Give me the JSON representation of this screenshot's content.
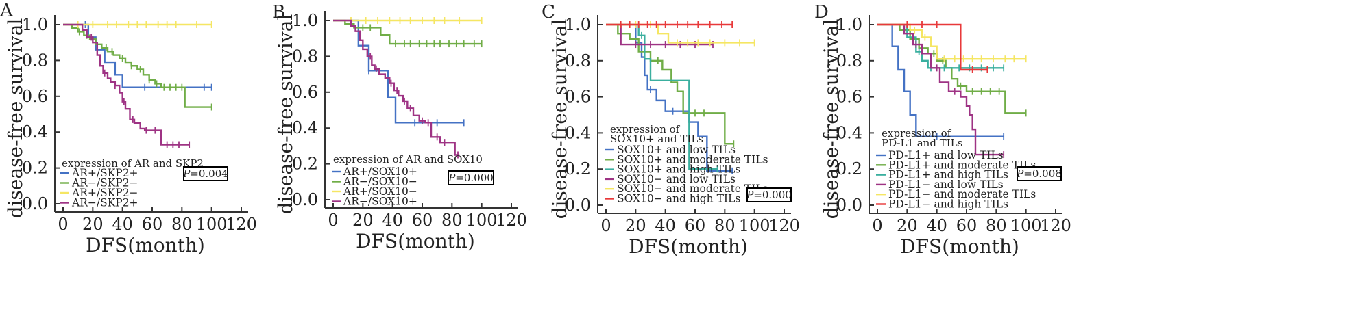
{
  "chart_data": [
    {
      "type": "line",
      "panel": "A",
      "xlabel": "DFS(month)",
      "ylabel": "disease-free survival",
      "xlim": [
        0,
        120
      ],
      "ylim": [
        0,
        1.0
      ],
      "xticks": [
        0,
        20,
        40,
        60,
        80,
        100,
        120
      ],
      "yticks": [
        0.0,
        0.2,
        0.4,
        0.6,
        0.8,
        1.0
      ],
      "legend_title": "expression of AR and SKP2",
      "legend_placement": "bottom-left",
      "p_value": "0.004",
      "series": [
        {
          "name": "AR+/SKP2+",
          "color": "#4472c4",
          "steps": [
            [
              0,
              1.0
            ],
            [
              17,
              0.93
            ],
            [
              22,
              0.86
            ],
            [
              28,
              0.79
            ],
            [
              35,
              0.72
            ],
            [
              40,
              0.65
            ],
            [
              100,
              0.65
            ]
          ],
          "censored": [
            15,
            55,
            95,
            100
          ]
        },
        {
          "name": "AR−/SKP2−",
          "color": "#70ad47",
          "steps": [
            [
              0,
              1.0
            ],
            [
              6,
              0.98
            ],
            [
              10,
              0.96
            ],
            [
              14,
              0.94
            ],
            [
              18,
              0.92
            ],
            [
              22,
              0.89
            ],
            [
              26,
              0.87
            ],
            [
              30,
              0.85
            ],
            [
              34,
              0.83
            ],
            [
              38,
              0.81
            ],
            [
              42,
              0.79
            ],
            [
              46,
              0.77
            ],
            [
              50,
              0.75
            ],
            [
              54,
              0.72
            ],
            [
              58,
              0.69
            ],
            [
              62,
              0.67
            ],
            [
              66,
              0.65
            ],
            [
              82,
              0.54
            ],
            [
              100,
              0.54
            ]
          ],
          "censored": [
            11,
            16,
            29,
            33,
            40,
            46,
            52,
            58,
            63,
            68,
            72,
            76,
            80,
            100
          ]
        },
        {
          "name": "AR+/SKP2−",
          "color": "#f5e663",
          "steps": [
            [
              0,
              1.0
            ],
            [
              100,
              1.0
            ]
          ],
          "censored": [
            10,
            20,
            30,
            36,
            44,
            50,
            56,
            64,
            70,
            76,
            90,
            100
          ]
        },
        {
          "name": "AR−/SKP2+",
          "color": "#9e3384",
          "steps": [
            [
              0,
              1.0
            ],
            [
              13,
              0.97
            ],
            [
              16,
              0.93
            ],
            [
              20,
              0.9
            ],
            [
              23,
              0.83
            ],
            [
              25,
              0.77
            ],
            [
              27,
              0.73
            ],
            [
              30,
              0.7
            ],
            [
              32,
              0.68
            ],
            [
              35,
              0.66
            ],
            [
              38,
              0.62
            ],
            [
              40,
              0.57
            ],
            [
              42,
              0.53
            ],
            [
              45,
              0.47
            ],
            [
              48,
              0.45
            ],
            [
              52,
              0.42
            ],
            [
              55,
              0.41
            ],
            [
              60,
              0.41
            ],
            [
              66,
              0.33
            ],
            [
              85,
              0.33
            ]
          ],
          "censored": [
            19,
            28,
            35,
            41,
            47,
            56,
            62,
            70,
            74,
            78,
            85
          ]
        }
      ]
    },
    {
      "type": "line",
      "panel": "B",
      "xlabel": "DFS(month)",
      "ylabel": "disease-free survival",
      "xlim": [
        0,
        120
      ],
      "ylim": [
        0,
        1.0
      ],
      "xticks": [
        0,
        20,
        40,
        60,
        80,
        100,
        120
      ],
      "yticks": [
        0.0,
        0.2,
        0.4,
        0.6,
        0.8,
        1.0
      ],
      "legend_title": "expression of AR and SOX10",
      "legend_placement": "bottom-left",
      "p_value": "0.000",
      "series": [
        {
          "name": "AR+/SOX10+",
          "color": "#4472c4",
          "steps": [
            [
              0,
              1.0
            ],
            [
              17,
              0.86
            ],
            [
              24,
              0.72
            ],
            [
              32,
              0.72
            ],
            [
              37,
              0.57
            ],
            [
              42,
              0.43
            ],
            [
              88,
              0.43
            ]
          ],
          "censored": [
            24,
            55,
            70,
            88
          ]
        },
        {
          "name": "AR−/SOX10−",
          "color": "#70ad47",
          "steps": [
            [
              0,
              1.0
            ],
            [
              8,
              0.98
            ],
            [
              14,
              0.96
            ],
            [
              28,
              0.96
            ],
            [
              32,
              0.92
            ],
            [
              38,
              0.87
            ],
            [
              100,
              0.87
            ]
          ],
          "censored": [
            20,
            25,
            42,
            48,
            52,
            58,
            63,
            68,
            72,
            78,
            83,
            88,
            95,
            100
          ]
        },
        {
          "name": "AR+/SOX10−",
          "color": "#f5e663",
          "steps": [
            [
              0,
              1.0
            ],
            [
              100,
              1.0
            ]
          ],
          "censored": [
            12,
            22,
            30,
            38,
            45,
            52,
            60,
            68,
            75,
            85,
            100
          ]
        },
        {
          "name": "AR−/SOX10+",
          "color": "#9e3384",
          "steps": [
            [
              0,
              1.0
            ],
            [
              12,
              0.97
            ],
            [
              15,
              0.94
            ],
            [
              18,
              0.89
            ],
            [
              20,
              0.84
            ],
            [
              23,
              0.8
            ],
            [
              26,
              0.75
            ],
            [
              28,
              0.73
            ],
            [
              31,
              0.7
            ],
            [
              35,
              0.68
            ],
            [
              38,
              0.65
            ],
            [
              41,
              0.61
            ],
            [
              44,
              0.58
            ],
            [
              47,
              0.55
            ],
            [
              50,
              0.51
            ],
            [
              54,
              0.47
            ],
            [
              58,
              0.44
            ],
            [
              62,
              0.43
            ],
            [
              66,
              0.35
            ],
            [
              72,
              0.32
            ],
            [
              78,
              0.32
            ],
            [
              82,
              0.25
            ],
            [
              85,
              0.25
            ]
          ],
          "censored": [
            25,
            29,
            39,
            43,
            48,
            52,
            60,
            64,
            70,
            75,
            84
          ]
        }
      ]
    },
    {
      "type": "line",
      "panel": "C",
      "xlabel": "DFS(month)",
      "ylabel": "disease-free survival",
      "xlim": [
        0,
        120
      ],
      "ylim": [
        0,
        1.0
      ],
      "xticks": [
        0,
        20,
        40,
        60,
        80,
        100,
        120
      ],
      "yticks": [
        0.0,
        0.2,
        0.4,
        0.6,
        0.8,
        1.0
      ],
      "legend_title": "expression of SOX10+ and TILs",
      "legend_placement": "bottom-left",
      "p_value": "0.000",
      "series": [
        {
          "name": "SOX10+ and low TILs",
          "color": "#4472c4",
          "steps": [
            [
              0,
              1.0
            ],
            [
              20,
              0.9
            ],
            [
              24,
              0.82
            ],
            [
              26,
              0.72
            ],
            [
              28,
              0.64
            ],
            [
              34,
              0.58
            ],
            [
              40,
              0.52
            ],
            [
              56,
              0.46
            ],
            [
              62,
              0.38
            ],
            [
              68,
              0.19
            ],
            [
              85,
              0.19
            ]
          ],
          "censored": [
            30,
            45,
            85
          ]
        },
        {
          "name": "SOX10+ and moderate TILs",
          "color": "#70ad47",
          "steps": [
            [
              0,
              1.0
            ],
            [
              8,
              0.95
            ],
            [
              16,
              0.92
            ],
            [
              22,
              0.85
            ],
            [
              30,
              0.8
            ],
            [
              38,
              0.75
            ],
            [
              44,
              0.68
            ],
            [
              48,
              0.63
            ],
            [
              52,
              0.51
            ],
            [
              74,
              0.51
            ],
            [
              80,
              0.34
            ],
            [
              86,
              0.34
            ]
          ],
          "censored": [
            35,
            60,
            66,
            86
          ]
        },
        {
          "name": "SOX10+ and high TILs",
          "color": "#3aaf9f",
          "steps": [
            [
              0,
              1.0
            ],
            [
              22,
              0.94
            ],
            [
              26,
              0.81
            ],
            [
              30,
              0.69
            ],
            [
              52,
              0.69
            ],
            [
              56,
              0.2
            ],
            [
              75,
              0.2
            ]
          ],
          "censored": [
            24,
            75
          ]
        },
        {
          "name": "SOX10− and low TILs",
          "color": "#9e3384",
          "steps": [
            [
              0,
              1.0
            ],
            [
              10,
              0.89
            ],
            [
              72,
              0.89
            ]
          ],
          "censored": [
            20,
            30,
            40,
            50,
            60,
            72
          ]
        },
        {
          "name": "SOX10− and moderate TILs",
          "color": "#f5e663",
          "steps": [
            [
              0,
              1.0
            ],
            [
              35,
              0.95
            ],
            [
              42,
              0.9
            ],
            [
              100,
              0.9
            ]
          ],
          "censored": [
            20,
            30,
            48,
            55,
            62,
            70,
            80,
            90,
            100
          ]
        },
        {
          "name": "SOX10− and high TILs",
          "color": "#e8393a",
          "steps": [
            [
              0,
              1.0
            ],
            [
              85,
              1.0
            ]
          ],
          "censored": [
            10,
            16,
            22,
            28,
            34,
            40,
            48,
            55,
            62,
            70,
            78,
            85
          ]
        }
      ]
    },
    {
      "type": "line",
      "panel": "D",
      "xlabel": "DFS(month)",
      "ylabel": "disease-free survival",
      "xlim": [
        0,
        120
      ],
      "ylim": [
        0,
        1.0
      ],
      "xticks": [
        0,
        20,
        40,
        60,
        80,
        100,
        120
      ],
      "yticks": [
        0.0,
        0.2,
        0.4,
        0.6,
        0.8,
        1.0
      ],
      "legend_title": "expression of PD-L1 and TILs",
      "legend_placement": "bottom-left",
      "p_value": "0.008",
      "series": [
        {
          "name": "PD-L1+ and low TILs",
          "color": "#4472c4",
          "steps": [
            [
              0,
              1.0
            ],
            [
              10,
              0.88
            ],
            [
              14,
              0.75
            ],
            [
              18,
              0.63
            ],
            [
              22,
              0.5
            ],
            [
              26,
              0.38
            ],
            [
              85,
              0.38
            ]
          ],
          "censored": [
            40,
            85
          ]
        },
        {
          "name": "PD-L1+ and moderate TILs",
          "color": "#70ad47",
          "steps": [
            [
              0,
              1.0
            ],
            [
              15,
              0.97
            ],
            [
              22,
              0.92
            ],
            [
              28,
              0.87
            ],
            [
              34,
              0.84
            ],
            [
              40,
              0.8
            ],
            [
              46,
              0.76
            ],
            [
              50,
              0.7
            ],
            [
              54,
              0.66
            ],
            [
              60,
              0.63
            ],
            [
              82,
              0.63
            ],
            [
              86,
              0.51
            ],
            [
              100,
              0.51
            ]
          ],
          "censored": [
            18,
            24,
            30,
            38,
            44,
            56,
            64,
            70,
            76,
            82,
            100
          ]
        },
        {
          "name": "PD-L1+ and high TILs",
          "color": "#3aaf9f",
          "steps": [
            [
              0,
              1.0
            ],
            [
              20,
              0.93
            ],
            [
              26,
              0.85
            ],
            [
              30,
              0.8
            ],
            [
              34,
              0.76
            ],
            [
              85,
              0.76
            ]
          ],
          "censored": [
            28,
            36,
            45,
            55,
            62,
            70,
            78,
            85
          ]
        },
        {
          "name": "PD-L1− and low TILs",
          "color": "#9e3384",
          "steps": [
            [
              0,
              1.0
            ],
            [
              18,
              0.95
            ],
            [
              24,
              0.89
            ],
            [
              30,
              0.84
            ],
            [
              36,
              0.76
            ],
            [
              42,
              0.68
            ],
            [
              48,
              0.63
            ],
            [
              56,
              0.6
            ],
            [
              60,
              0.55
            ],
            [
              62,
              0.5
            ],
            [
              64,
              0.42
            ],
            [
              66,
              0.28
            ],
            [
              85,
              0.28
            ]
          ],
          "censored": [
            26,
            40,
            52,
            85
          ]
        },
        {
          "name": "PD-L1− and moderate TILs",
          "color": "#f5e663",
          "steps": [
            [
              0,
              1.0
            ],
            [
              22,
              0.97
            ],
            [
              30,
              0.93
            ],
            [
              36,
              0.88
            ],
            [
              40,
              0.81
            ],
            [
              100,
              0.81
            ]
          ],
          "censored": [
            25,
            32,
            45,
            52,
            58,
            64,
            70,
            78,
            86,
            92,
            100
          ]
        },
        {
          "name": "PD-L1− and high TILs",
          "color": "#e8393a",
          "steps": [
            [
              0,
              1.0
            ],
            [
              52,
              1.0
            ],
            [
              56,
              0.75
            ],
            [
              74,
              0.75
            ]
          ],
          "censored": [
            20,
            30,
            40,
            64,
            74
          ]
        }
      ]
    }
  ]
}
